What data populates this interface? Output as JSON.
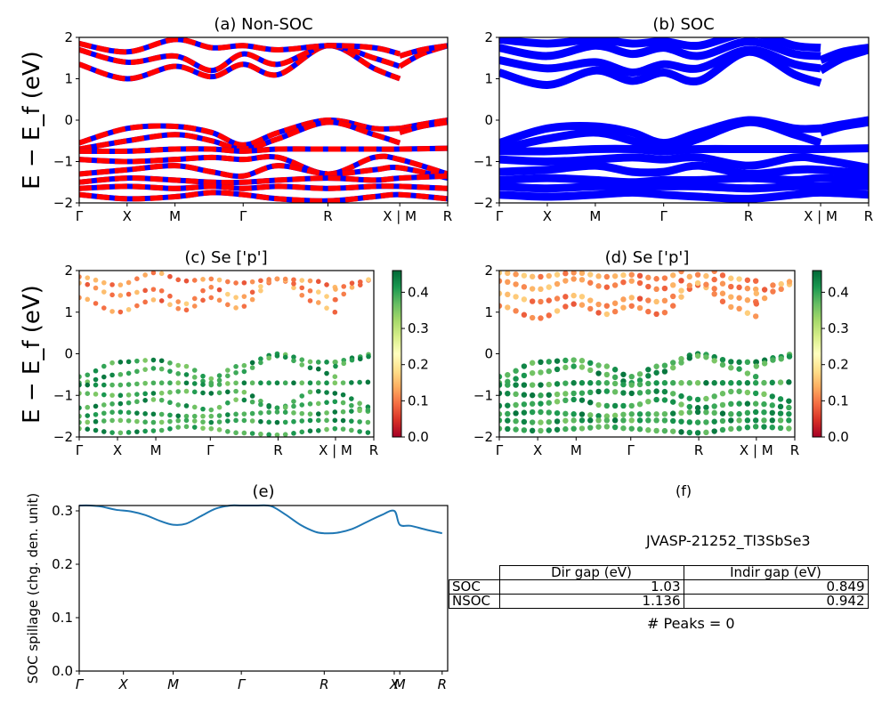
{
  "figure": {
    "ylabel_energy": "E − E_f (eV)",
    "kpath_labels": [
      "Γ",
      "X",
      "M",
      "Γ",
      "R",
      "X | M",
      "R"
    ]
  },
  "chart_data": [
    {
      "panel": "a",
      "type": "line",
      "title": "(a) Non-SOC",
      "xlabel": "",
      "ylabel": "E − E_f (eV)",
      "ylim": [
        -2,
        2
      ],
      "yticks": [
        "−2",
        "−1",
        "0",
        "1",
        "2"
      ],
      "xticks": [
        "Γ",
        "X",
        "M",
        "Γ",
        "R",
        "X | M",
        "R"
      ],
      "xtick_positions": [
        0,
        0.13,
        0.26,
        0.445,
        0.675,
        0.87,
        1.0
      ],
      "series_colors": [
        "#ff0000",
        "#0000ff"
      ],
      "description": "Band structure, spin up (red) / spin down (blue) dashed overlay",
      "bands": [
        {
          "x": [
            0,
            0.13,
            0.26,
            0.36,
            0.445,
            0.54,
            0.675,
            0.8,
            0.87
          ],
          "y": [
            1.35,
            1.0,
            1.3,
            1.05,
            1.35,
            1.1,
            1.8,
            1.25,
            1.0
          ]
        },
        {
          "x": [
            0,
            0.13,
            0.26,
            0.36,
            0.445,
            0.54,
            0.675,
            0.8,
            0.87
          ],
          "y": [
            1.7,
            1.4,
            1.55,
            1.2,
            1.6,
            1.35,
            1.8,
            1.5,
            1.3
          ]
        },
        {
          "x": [
            0,
            0.13,
            0.26,
            0.36,
            0.445,
            0.54,
            0.675,
            0.8,
            0.87
          ],
          "y": [
            1.85,
            1.65,
            1.95,
            1.75,
            1.8,
            1.7,
            1.8,
            1.75,
            1.6
          ]
        },
        {
          "x": [
            0.87,
            0.93,
            1.0
          ],
          "y": [
            1.3,
            1.6,
            1.8
          ]
        },
        {
          "x": [
            0.87,
            0.93,
            1.0
          ],
          "y": [
            1.55,
            1.7,
            1.8
          ]
        },
        {
          "x": [
            0,
            0.13,
            0.26,
            0.36,
            0.445,
            0.54,
            0.675,
            0.8,
            0.87
          ],
          "y": [
            -0.55,
            -0.2,
            -0.15,
            -0.3,
            -0.6,
            -0.3,
            0.0,
            -0.2,
            -0.2
          ]
        },
        {
          "x": [
            0,
            0.13,
            0.26,
            0.36,
            0.445,
            0.54,
            0.675,
            0.8,
            0.87
          ],
          "y": [
            -0.7,
            -0.5,
            -0.35,
            -0.5,
            -0.7,
            -0.45,
            -0.05,
            -0.35,
            -0.55
          ]
        },
        {
          "x": [
            0.87,
            0.93,
            1.0
          ],
          "y": [
            -0.2,
            -0.1,
            0.0
          ]
        },
        {
          "x": [
            0.87,
            0.93,
            1.0
          ],
          "y": [
            -0.3,
            -0.15,
            -0.05
          ]
        },
        {
          "x": [
            0,
            0.13,
            0.26,
            0.36,
            0.445,
            0.54,
            0.675,
            0.8,
            0.87,
            1.0
          ],
          "y": [
            -0.75,
            -0.75,
            -0.7,
            -0.7,
            -0.75,
            -0.7,
            -0.7,
            -0.7,
            -0.7,
            -0.68
          ]
        },
        {
          "x": [
            0,
            0.13,
            0.26,
            0.36,
            0.445,
            0.54,
            0.675,
            0.8,
            0.87,
            1.0
          ],
          "y": [
            -0.95,
            -1.0,
            -0.95,
            -0.9,
            -0.95,
            -0.9,
            -1.3,
            -0.9,
            -0.95,
            -1.3
          ]
        },
        {
          "x": [
            0,
            0.13,
            0.26,
            0.36,
            0.445,
            0.54,
            0.675,
            0.8,
            0.87,
            1.0
          ],
          "y": [
            -1.3,
            -1.2,
            -1.1,
            -1.25,
            -1.35,
            -1.1,
            -1.3,
            -1.2,
            -1.15,
            -1.4
          ]
        },
        {
          "x": [
            0,
            0.13,
            0.26,
            0.36,
            0.445,
            0.54,
            0.675,
            0.8,
            0.87,
            1.0
          ],
          "y": [
            -1.5,
            -1.4,
            -1.45,
            -1.5,
            -1.5,
            -1.45,
            -1.4,
            -1.45,
            -1.4,
            -1.35
          ]
        },
        {
          "x": [
            0,
            0.13,
            0.26,
            0.36,
            0.445,
            0.54,
            0.675,
            0.8,
            0.87,
            1.0
          ],
          "y": [
            -1.65,
            -1.6,
            -1.65,
            -1.6,
            -1.65,
            -1.6,
            -1.65,
            -1.6,
            -1.6,
            -1.65
          ]
        },
        {
          "x": [
            0,
            0.13,
            0.26,
            0.36,
            0.445,
            0.54,
            0.675,
            0.8,
            0.87,
            1.0
          ],
          "y": [
            -1.8,
            -1.9,
            -1.85,
            -1.75,
            -1.8,
            -1.9,
            -1.95,
            -1.85,
            -1.8,
            -1.9
          ]
        }
      ]
    },
    {
      "panel": "b",
      "type": "line",
      "title": "(b) SOC",
      "ylim": [
        -2,
        2
      ],
      "yticks": [
        "−2",
        "−1",
        "0",
        "1",
        "2"
      ],
      "xticks": [
        "Γ",
        "X",
        "M",
        "Γ",
        "R",
        "X | M",
        "R"
      ],
      "xtick_positions": [
        0,
        0.13,
        0.26,
        0.445,
        0.675,
        0.87,
        1.0
      ],
      "series_colors": [
        "#0000ff"
      ],
      "description": "SOC band structure (blue)",
      "bands": [
        {
          "x": [
            0,
            0.13,
            0.26,
            0.36,
            0.445,
            0.54,
            0.675,
            0.8,
            0.87
          ],
          "y": [
            1.15,
            0.85,
            1.2,
            0.95,
            1.15,
            0.95,
            1.65,
            1.1,
            0.9
          ]
        },
        {
          "x": [
            0,
            0.13,
            0.26,
            0.36,
            0.445,
            0.54,
            0.675,
            0.8,
            0.87
          ],
          "y": [
            1.45,
            1.25,
            1.4,
            1.15,
            1.35,
            1.25,
            1.7,
            1.35,
            1.25
          ]
        },
        {
          "x": [
            0,
            0.13,
            0.26,
            0.36,
            0.445,
            0.54,
            0.675,
            0.8,
            0.87
          ],
          "y": [
            1.75,
            1.55,
            1.8,
            1.6,
            1.75,
            1.55,
            1.9,
            1.6,
            1.55
          ]
        },
        {
          "x": [
            0,
            0.13,
            0.26,
            0.36,
            0.445,
            0.54,
            0.675,
            0.8,
            0.87
          ],
          "y": [
            1.95,
            1.85,
            1.95,
            1.85,
            1.9,
            1.8,
            2.1,
            1.8,
            1.75
          ]
        },
        {
          "x": [
            0.87,
            0.93,
            1.0
          ],
          "y": [
            1.2,
            1.5,
            1.7
          ]
        },
        {
          "x": [
            0.87,
            0.93,
            1.0
          ],
          "y": [
            1.45,
            1.65,
            1.75
          ]
        },
        {
          "x": [
            0,
            0.13,
            0.26,
            0.36,
            0.445,
            0.54,
            0.675,
            0.8,
            0.87
          ],
          "y": [
            -0.55,
            -0.2,
            -0.15,
            -0.3,
            -0.55,
            -0.3,
            0.0,
            -0.2,
            -0.2
          ]
        },
        {
          "x": [
            0,
            0.13,
            0.26,
            0.36,
            0.445,
            0.54,
            0.675,
            0.8,
            0.87
          ],
          "y": [
            -0.7,
            -0.45,
            -0.3,
            -0.5,
            -0.7,
            -0.45,
            -0.05,
            -0.35,
            -0.55
          ]
        },
        {
          "x": [
            0.87,
            0.93,
            1.0
          ],
          "y": [
            -0.2,
            -0.1,
            0.0
          ]
        },
        {
          "x": [
            0.87,
            0.93,
            1.0
          ],
          "y": [
            -0.3,
            -0.15,
            -0.05
          ]
        },
        {
          "x": [
            0,
            0.13,
            0.26,
            0.36,
            0.445,
            0.54,
            0.675,
            0.8,
            0.87,
            1.0
          ],
          "y": [
            -0.75,
            -0.75,
            -0.7,
            -0.7,
            -0.75,
            -0.7,
            -0.7,
            -0.7,
            -0.7,
            -0.68
          ]
        },
        {
          "x": [
            0,
            0.13,
            0.26,
            0.36,
            0.445,
            0.54,
            0.675,
            0.8,
            0.87,
            1.0
          ],
          "y": [
            -0.95,
            -1.0,
            -0.95,
            -0.9,
            -0.95,
            -0.9,
            -1.1,
            -0.9,
            -0.95,
            -1.15
          ]
        },
        {
          "x": [
            0,
            0.13,
            0.26,
            0.36,
            0.445,
            0.54,
            0.675,
            0.8,
            0.87,
            1.0
          ],
          "y": [
            -1.25,
            -1.2,
            -1.1,
            -1.25,
            -1.25,
            -1.1,
            -1.3,
            -1.2,
            -1.2,
            -1.3
          ]
        },
        {
          "x": [
            0,
            0.13,
            0.26,
            0.36,
            0.445,
            0.54,
            0.675,
            0.8,
            0.87,
            1.0
          ],
          "y": [
            -1.45,
            -1.4,
            -1.45,
            -1.5,
            -1.45,
            -1.45,
            -1.4,
            -1.45,
            -1.4,
            -1.45
          ]
        },
        {
          "x": [
            0,
            0.13,
            0.26,
            0.36,
            0.445,
            0.54,
            0.675,
            0.8,
            0.87,
            1.0
          ],
          "y": [
            -1.6,
            -1.65,
            -1.6,
            -1.6,
            -1.6,
            -1.6,
            -1.65,
            -1.6,
            -1.6,
            -1.6
          ]
        },
        {
          "x": [
            0,
            0.13,
            0.26,
            0.36,
            0.445,
            0.54,
            0.675,
            0.8,
            0.87,
            1.0
          ],
          "y": [
            -1.8,
            -1.85,
            -1.8,
            -1.75,
            -1.8,
            -1.85,
            -1.9,
            -1.8,
            -1.75,
            -1.8
          ]
        }
      ]
    },
    {
      "panel": "c",
      "type": "scatter",
      "title": "(c)  Se ['p']",
      "ylim": [
        -2,
        2
      ],
      "yticks": [
        "−2",
        "−1",
        "0",
        "1",
        "2"
      ],
      "xticks": [
        "Γ",
        "X",
        "M",
        "Γ",
        "R",
        "X | M",
        "R"
      ],
      "xtick_positions": [
        0,
        0.13,
        0.26,
        0.445,
        0.675,
        0.87,
        1.0
      ],
      "colorbar": {
        "cmap": "RdYlGn",
        "range": [
          0.0,
          0.46
        ],
        "ticks": [
          "0.0",
          "0.1",
          "0.2",
          "0.3",
          "0.4"
        ]
      },
      "conduction_weight": 0.12,
      "valence_weight": 0.4,
      "description": "Se p-orbital projected bands, non-SOC"
    },
    {
      "panel": "d",
      "type": "scatter",
      "title": "(d) Se ['p']",
      "ylim": [
        -2,
        2
      ],
      "yticks": [
        "−2",
        "−1",
        "0",
        "1",
        "2"
      ],
      "xticks": [
        "Γ",
        "X",
        "M",
        "Γ",
        "R",
        "X | M",
        "R"
      ],
      "xtick_positions": [
        0,
        0.13,
        0.26,
        0.445,
        0.675,
        0.87,
        1.0
      ],
      "colorbar": {
        "cmap": "RdYlGn",
        "range": [
          0.0,
          0.46
        ],
        "ticks": [
          "0.0",
          "0.1",
          "0.2",
          "0.3",
          "0.4"
        ]
      },
      "conduction_weight": 0.12,
      "valence_weight": 0.4,
      "description": "Se p-orbital projected bands, SOC"
    },
    {
      "panel": "e",
      "type": "line",
      "title": "(e)",
      "xlabel": "",
      "ylabel": "SOC spillage (chg. den. unit)",
      "ylim": [
        0.0,
        0.31
      ],
      "yticks": [
        "0.0",
        "0.1",
        "0.2",
        "0.3"
      ],
      "xticks": [
        "Γ",
        "X",
        "M",
        "Γ",
        "R",
        "X",
        "M",
        "R"
      ],
      "xtick_positions": [
        0,
        0.12,
        0.255,
        0.44,
        0.665,
        0.855,
        0.87,
        0.985
      ],
      "color": "#1f77b4",
      "x": [
        0,
        0.03,
        0.06,
        0.1,
        0.14,
        0.18,
        0.22,
        0.255,
        0.29,
        0.33,
        0.37,
        0.41,
        0.44,
        0.48,
        0.52,
        0.56,
        0.6,
        0.64,
        0.665,
        0.7,
        0.74,
        0.78,
        0.82,
        0.855,
        0.87,
        0.9,
        0.94,
        0.985
      ],
      "y": [
        0.31,
        0.31,
        0.308,
        0.302,
        0.299,
        0.292,
        0.281,
        0.274,
        0.276,
        0.29,
        0.304,
        0.31,
        0.31,
        0.31,
        0.309,
        0.293,
        0.274,
        0.261,
        0.258,
        0.259,
        0.266,
        0.279,
        0.292,
        0.3,
        0.274,
        0.272,
        0.265,
        0.258
      ]
    }
  ],
  "panel_f": {
    "title": "(f)",
    "material_id": "JVASP-21252_Tl3SbSe3",
    "table": {
      "headers": [
        "",
        "Dir gap (eV)",
        "Indir gap (eV)"
      ],
      "rows": [
        {
          "label": "SOC",
          "dir_gap": "1.03",
          "indir_gap": "0.849"
        },
        {
          "label": "NSOC",
          "dir_gap": "1.136",
          "indir_gap": "0.942"
        }
      ]
    },
    "peaks_text": "# Peaks = 0"
  }
}
